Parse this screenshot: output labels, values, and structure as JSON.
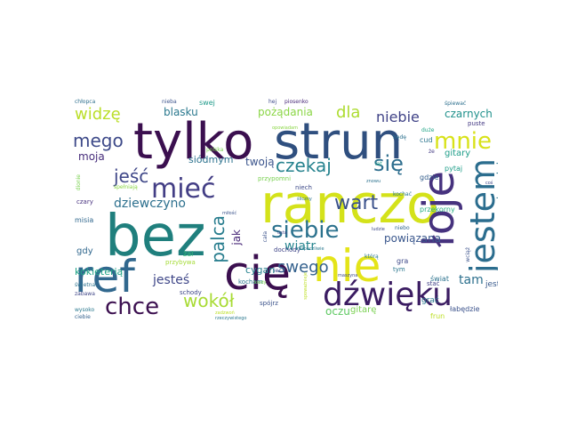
{
  "words": [
    {
      "text": "tylko",
      "color": "#3b0f4f"
    },
    {
      "text": "strun",
      "color": "#2f4f7f"
    },
    {
      "text": "bez",
      "color": "#1f7f7d"
    },
    {
      "text": "ranczo",
      "color": "#d4e21a"
    },
    {
      "text": "ref",
      "color": "#31688e"
    },
    {
      "text": "cię",
      "color": "#3b0f4f"
    },
    {
      "text": "nie",
      "color": "#e4e419"
    },
    {
      "text": "łoje",
      "color": "#46327e"
    },
    {
      "text": "jestem",
      "color": "#2b6d8e"
    },
    {
      "text": "dźwięku",
      "color": "#3b1c62"
    },
    {
      "text": "mieć",
      "color": "#433e85"
    },
    {
      "text": "siebie",
      "color": "#2c728e"
    },
    {
      "text": "mnie",
      "color": "#d8e219"
    },
    {
      "text": "chce",
      "color": "#3b0f4f"
    },
    {
      "text": "mego",
      "color": "#3e4a89"
    },
    {
      "text": "czekaj",
      "color": "#26828e"
    },
    {
      "text": "się",
      "color": "#2e6e8e"
    },
    {
      "text": "wart",
      "color": "#3b528b"
    },
    {
      "text": "jeść",
      "color": "#3f4788"
    },
    {
      "text": "widzę",
      "color": "#bade28"
    },
    {
      "text": "dla",
      "color": "#addc30"
    },
    {
      "text": "niebie",
      "color": "#404387"
    },
    {
      "text": "palca",
      "color": "#287d8e"
    },
    {
      "text": "wokół",
      "color": "#a8db34"
    },
    {
      "text": "jesteś",
      "color": "#3f4788"
    },
    {
      "text": "swego",
      "color": "#34618d"
    },
    {
      "text": "dziewczyno",
      "color": "#2d708e"
    },
    {
      "text": "pożądania",
      "color": "#8bd646"
    },
    {
      "text": "blasku",
      "color": "#2a788e"
    },
    {
      "text": "czarnych",
      "color": "#21918c"
    },
    {
      "text": "moja",
      "color": "#472d7b"
    },
    {
      "text": "twoją",
      "color": "#3a548c"
    },
    {
      "text": "siódmym",
      "color": "#2c728e"
    },
    {
      "text": "jak",
      "color": "#482878"
    },
    {
      "text": "wiatr",
      "color": "#25848e"
    },
    {
      "text": "powiązana",
      "color": "#39568c"
    },
    {
      "text": "tam",
      "color": "#2d708e"
    },
    {
      "text": "niewolnico",
      "color": "#2a768e"
    },
    {
      "text": "gitary",
      "color": "#1f9e89"
    },
    {
      "text": "oczu",
      "color": "#5ec962"
    },
    {
      "text": "gitarę",
      "color": "#7ad151"
    },
    {
      "text": "kokieterią",
      "color": "#20a386"
    },
    {
      "text": "gdy",
      "color": "#31688e"
    },
    {
      "text": "cygan",
      "color": "#26828e"
    },
    {
      "text": "swej",
      "color": "#1f9a8a"
    },
    {
      "text": "misia",
      "color": "#31688e"
    },
    {
      "text": "grać",
      "color": "#2a788e"
    },
    {
      "text": "łabędzie",
      "color": "#3b528b"
    },
    {
      "text": "jest",
      "color": "#38598c"
    },
    {
      "text": "świat",
      "color": "#2c728e"
    },
    {
      "text": "czary",
      "color": "#46307e"
    },
    {
      "text": "przekorny",
      "color": "#26ad81"
    },
    {
      "text": "pytaj",
      "color": "#1f9e89"
    },
    {
      "text": "gdzie",
      "color": "#355f8d"
    },
    {
      "text": "cud",
      "color": "#2b758e"
    },
    {
      "text": "puste",
      "color": "#443983"
    },
    {
      "text": "stać",
      "color": "#424186"
    },
    {
      "text": "frun",
      "color": "#bddf26"
    },
    {
      "text": "gra",
      "color": "#3e4989"
    },
    {
      "text": "tym",
      "color": "#2a768e"
    },
    {
      "text": "niebo",
      "color": "#31688e"
    },
    {
      "text": "dochody",
      "color": "#404688"
    },
    {
      "text": "schody",
      "color": "#3f4889"
    },
    {
      "text": "kocham",
      "color": "#2a788e"
    },
    {
      "text": "żal",
      "color": "#35b779"
    },
    {
      "text": "przybywa",
      "color": "#a5db36"
    },
    {
      "text": "spójrz",
      "color": "#3b528b"
    },
    {
      "text": "ciebie",
      "color": "#34618d"
    },
    {
      "text": "zabawa",
      "color": "#404688"
    },
    {
      "text": "świetna",
      "color": "#2c728e"
    },
    {
      "text": "wysoko",
      "color": "#2a788e"
    },
    {
      "text": "niech",
      "color": "#3e4a89"
    },
    {
      "text": "przypomni",
      "color": "#7ad151"
    },
    {
      "text": "spełniają",
      "color": "#8bd646"
    },
    {
      "text": "chłopca",
      "color": "#2e6f8e"
    },
    {
      "text": "nieba",
      "color": "#3b528b"
    },
    {
      "text": "hej",
      "color": "#3e4a89"
    },
    {
      "text": "piosenko",
      "color": "#482878"
    },
    {
      "text": "śpiewać",
      "color": "#2d708e"
    },
    {
      "text": "będę",
      "color": "#2d708e"
    },
    {
      "text": "lat",
      "color": "#1fa188"
    },
    {
      "text": "duże",
      "color": "#20a486"
    },
    {
      "text": "że",
      "color": "#443a83"
    },
    {
      "text": "polska",
      "color": "#7ad151"
    },
    {
      "text": "dionie",
      "color": "#7ad151"
    },
    {
      "text": "cała",
      "color": "#3b528b"
    },
    {
      "text": "kochać",
      "color": "#2a788e"
    },
    {
      "text": "iec",
      "color": "#3f4788"
    },
    {
      "text": "którą",
      "color": "#2a788e"
    },
    {
      "text": "wciąż",
      "color": "#3b528b"
    },
    {
      "text": "maszyna",
      "color": "#3e4a89"
    },
    {
      "text": "śliczny",
      "color": "#2c728e"
    },
    {
      "text": "rzeczywistego",
      "color": "#2a788e"
    },
    {
      "text": "miłość",
      "color": "#3b528b"
    },
    {
      "text": "spoważnieje",
      "color": "#bddf26"
    },
    {
      "text": "zadzwoń",
      "color": "#bddf26"
    },
    {
      "text": "ludzie",
      "color": "#3e4a89"
    },
    {
      "text": "opowiadam",
      "color": "#8bd646"
    },
    {
      "text": "znowu",
      "color": "#2c728e"
    },
    {
      "text": "kiedy",
      "color": "#7ad151"
    },
    {
      "text": "usta",
      "color": "#404688"
    },
    {
      "text": "coś",
      "color": "#3f4788"
    },
    {
      "text": "rozpaczliwie",
      "color": "#2a788e"
    }
  ]
}
